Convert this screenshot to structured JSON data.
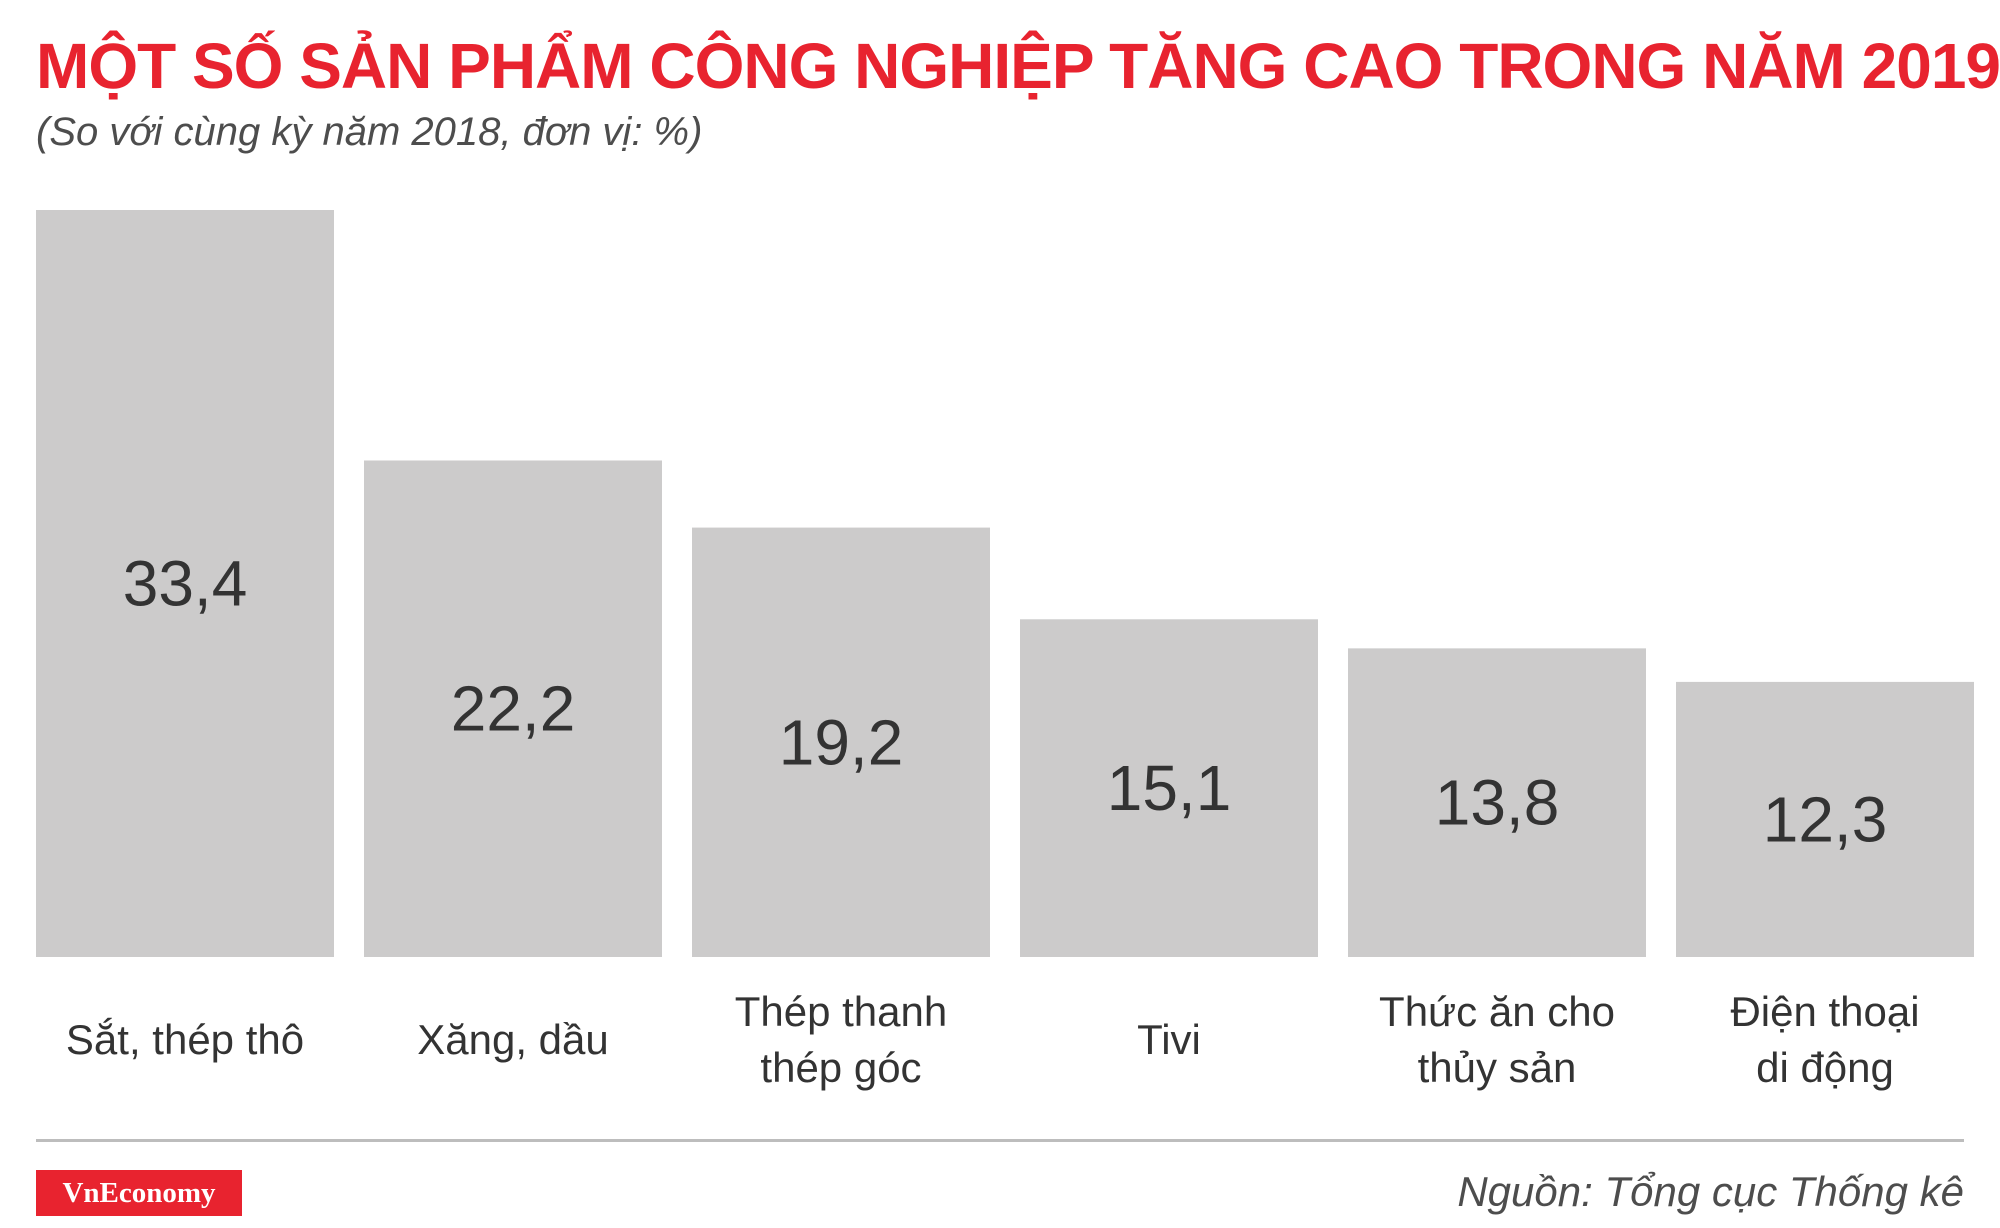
{
  "header": {
    "title": "MỘT SỐ SẢN PHẨM CÔNG NGHIỆP TĂNG CAO TRONG NĂM 2019",
    "subtitle": "(So với cùng kỳ năm 2018, đơn vị: %)"
  },
  "footer": {
    "brand": "VnEconomy",
    "source": "Nguồn: Tổng cục Thống kê"
  },
  "colors": {
    "title": "#e8232f",
    "bar": "#cccbcb",
    "value_text": "#333333",
    "label_text": "#333333",
    "brand_bg": "#e8232f"
  },
  "chart_data": {
    "type": "bar",
    "title": "MỘT SỐ SẢN PHẨM CÔNG NGHIỆP TĂNG CAO TRONG NĂM 2019",
    "subtitle": "(So với cùng kỳ năm 2018, đơn vị: %)",
    "categories": [
      [
        "Sắt, thép thô"
      ],
      [
        "Xăng, dầu"
      ],
      [
        "Thép thanh",
        "thép góc"
      ],
      [
        "Tivi"
      ],
      [
        "Thức ăn cho",
        "thủy sản"
      ],
      [
        "Điện thoại",
        "di động"
      ]
    ],
    "values": [
      33.4,
      22.2,
      19.2,
      15.1,
      13.8,
      12.3
    ],
    "value_labels": [
      "33,4",
      "22,2",
      "19,2",
      "15,1",
      "13,8",
      "12,3"
    ],
    "xlabel": "",
    "ylabel": "",
    "ylim": [
      0,
      33.4
    ],
    "grid": false,
    "legend": "none"
  }
}
